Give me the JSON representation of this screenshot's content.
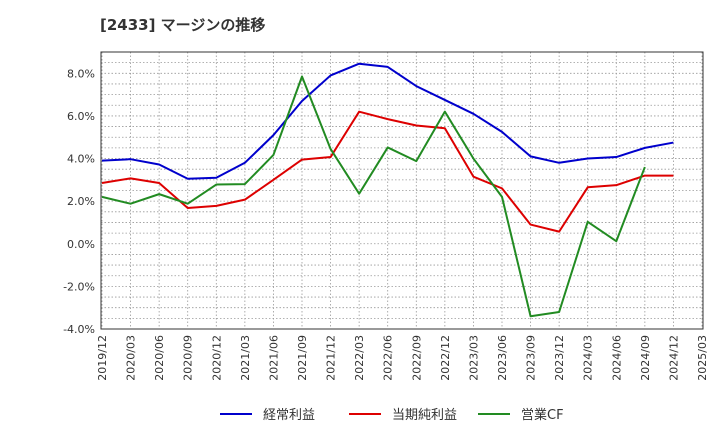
{
  "chart_data": {
    "type": "line",
    "title": "[2433]  マージンの推移",
    "xlabel": "",
    "ylabel": "",
    "ylim": [
      -4,
      9
    ],
    "yticks": [
      -4,
      -2,
      0,
      2,
      4,
      6,
      8
    ],
    "ytick_labels": [
      "-4.0%",
      "-2.0%",
      "0.0%",
      "2.0%",
      "4.0%",
      "6.0%",
      "8.0%"
    ],
    "categories": [
      "2019/12",
      "2020/03",
      "2020/06",
      "2020/09",
      "2020/12",
      "2021/03",
      "2021/06",
      "2021/09",
      "2021/12",
      "2022/03",
      "2022/06",
      "2022/09",
      "2022/12",
      "2023/03",
      "2023/06",
      "2023/09",
      "2023/12",
      "2024/03",
      "2024/06",
      "2024/09",
      "2024/12",
      "2025/03"
    ],
    "grid": true,
    "legend_position": "bottom",
    "series": [
      {
        "name": "経常利益",
        "color": "#0000cc",
        "values": [
          3.9,
          3.97,
          3.72,
          3.05,
          3.1,
          3.8,
          5.1,
          6.7,
          7.9,
          8.45,
          8.3,
          7.4,
          6.75,
          6.1,
          5.25,
          4.1,
          3.8,
          4.0,
          4.07,
          4.5,
          4.75,
          null
        ]
      },
      {
        "name": "当期純利益",
        "color": "#dd0000",
        "values": [
          2.85,
          3.07,
          2.85,
          1.68,
          1.78,
          2.07,
          3.0,
          3.95,
          4.07,
          6.2,
          5.85,
          5.55,
          5.42,
          3.15,
          2.6,
          0.9,
          0.57,
          2.65,
          2.75,
          3.2,
          3.2,
          null
        ]
      },
      {
        "name": "営業CF",
        "color": "#228b22",
        "values": [
          2.2,
          1.88,
          2.33,
          1.88,
          2.78,
          2.8,
          4.17,
          7.85,
          4.45,
          2.35,
          4.52,
          3.88,
          6.2,
          4.0,
          2.2,
          -3.4,
          -3.2,
          1.03,
          0.12,
          3.6,
          null,
          null
        ]
      }
    ]
  }
}
